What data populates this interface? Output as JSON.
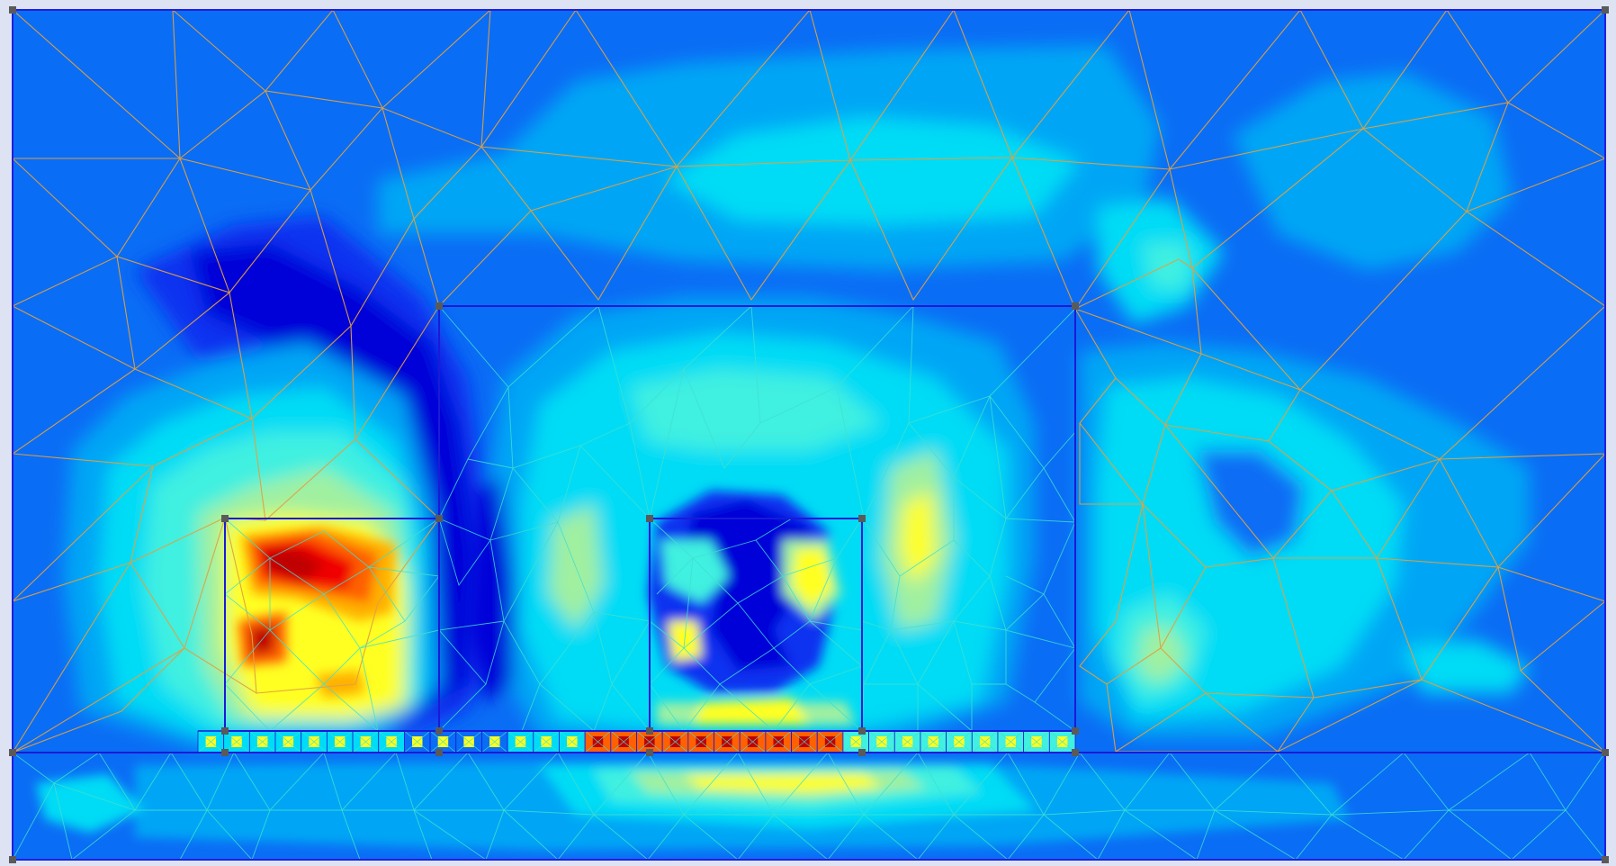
{
  "view": {
    "type": "finite-element mesh with contour plot",
    "text_labels": []
  },
  "colors": {
    "background": "#dde3f2",
    "domain_border": "#1f1fe0",
    "region_border": "#1a1ad8",
    "coarse_mesh_lines": "#e0a040",
    "fine_mesh_lines": "#40e0d0",
    "node_marker": "#5a5a5a",
    "scale": [
      "#0000d8",
      "#1030f0",
      "#0a6df5",
      "#00a6f5",
      "#00dcf5",
      "#40f0e0",
      "#a0f0a0",
      "#ffff20",
      "#ffb000",
      "#ff6000",
      "#f00000",
      "#c00000"
    ]
  }
}
